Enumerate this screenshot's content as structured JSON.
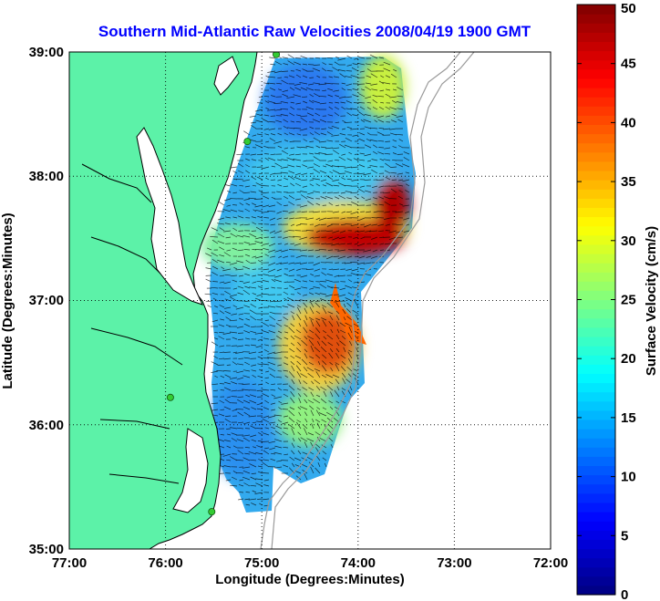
{
  "title": "Southern Mid-Atlantic Raw Velocities 2008/04/19 1900 GMT",
  "xlabel": "Longitude (Degrees:Minutes)",
  "ylabel": "Latitude (Degrees:Minutes)",
  "x_ticks": [
    "77:00",
    "76:00",
    "75:00",
    "74:00",
    "73:00",
    "72:00"
  ],
  "y_ticks": [
    "39:00",
    "38:00",
    "37:00",
    "36:00",
    "35:00"
  ],
  "colorbar": {
    "label": "Surface Velocity (cm/s)",
    "ticks": [
      "0",
      "5",
      "10",
      "15",
      "20",
      "25",
      "30",
      "35",
      "40",
      "45",
      "50"
    ],
    "range": [
      0,
      50
    ],
    "colormap": "jet"
  },
  "colors": {
    "title": "#0000ff",
    "land": "#5cf2a8",
    "coast": "#000000",
    "bathymetry": "#9a9a9a",
    "station": "#33cc33"
  },
  "map": {
    "lon_range": [
      -77,
      -72
    ],
    "lat_range": [
      35,
      39
    ],
    "grid": "dotted",
    "stations": [
      {
        "lon": -74.85,
        "lat": 38.98
      },
      {
        "lon": -75.15,
        "lat": 38.28
      },
      {
        "lon": -75.95,
        "lat": 36.22
      },
      {
        "lon": -75.52,
        "lat": 35.3
      }
    ]
  }
}
